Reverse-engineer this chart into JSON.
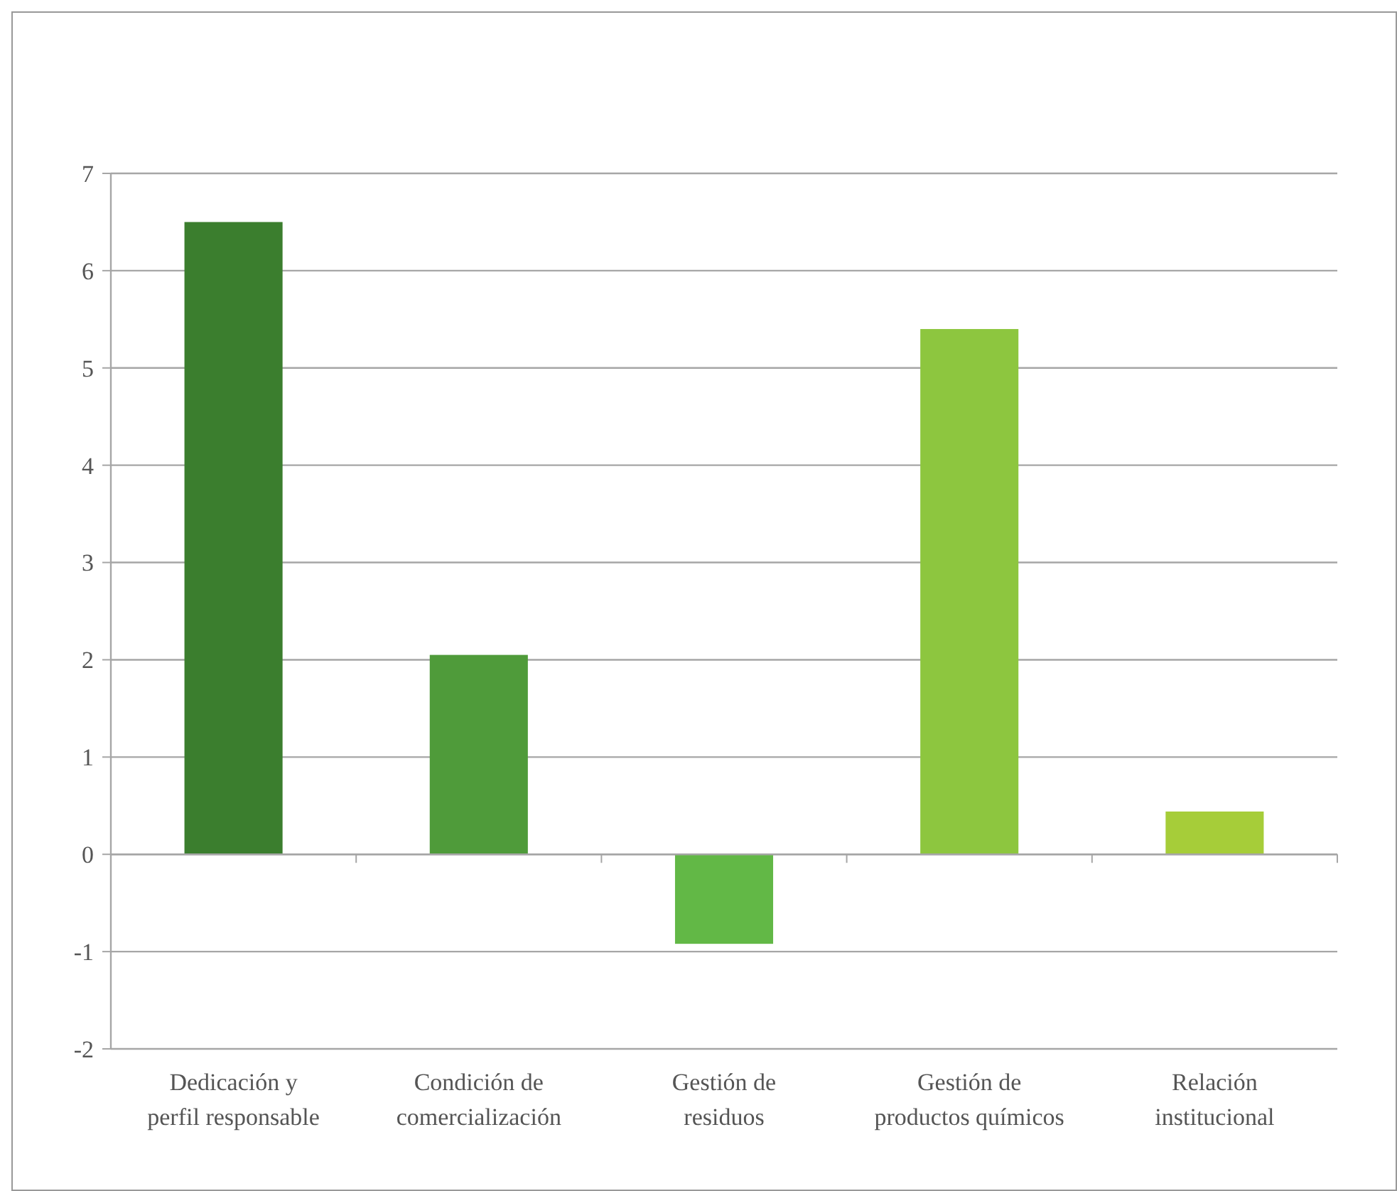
{
  "chart_data": {
    "type": "bar",
    "categories": [
      "Dedicación y perfil responsable",
      "Condición de comercialización",
      "Gestión de residuos",
      "Gestión de productos químicos",
      "Relación institucional"
    ],
    "values": [
      6.5,
      2.05,
      -0.92,
      5.4,
      0.44
    ],
    "colors": [
      "#3b7e2e",
      "#4f9b3a",
      "#62b846",
      "#8dc63f",
      "#a6cd39"
    ],
    "ylim": [
      -2,
      7
    ],
    "yticks": [
      -2,
      -1,
      0,
      1,
      2,
      3,
      4,
      5,
      6,
      7
    ],
    "grid": "y"
  }
}
